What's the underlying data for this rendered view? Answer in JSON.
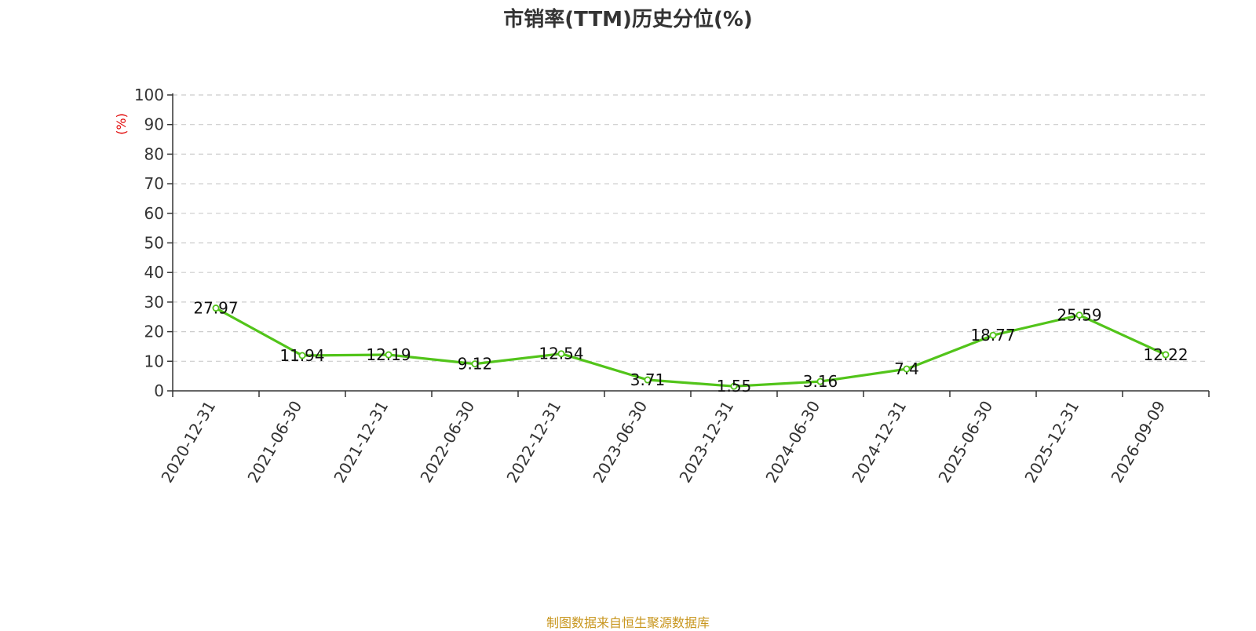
{
  "chart_data": {
    "type": "line",
    "title": "市销率(TTM)历史分位(%)",
    "ylabel": "(%)",
    "xlabel": "",
    "ylim": [
      0,
      100
    ],
    "yticks": [
      "0",
      "10",
      "20",
      "30",
      "40",
      "50",
      "60",
      "70",
      "80",
      "90",
      "100"
    ],
    "categories": [
      "2020-12-31",
      "2021-06-30",
      "2021-12-31",
      "2022-06-30",
      "2022-12-31",
      "2023-06-30",
      "2023-12-31",
      "2024-06-30",
      "2024-12-31",
      "2025-06-30",
      "2025-12-31",
      "2026-09-09"
    ],
    "values": [
      27.97,
      11.94,
      12.19,
      9.12,
      12.54,
      3.71,
      1.55,
      3.16,
      7.4,
      18.77,
      25.59,
      12.22
    ],
    "data_labels": [
      "27.97",
      "11.94",
      "12.19",
      "9.12",
      "12.54",
      "3.71",
      "1.55",
      "3.16",
      "7.4",
      "18.77",
      "25.59",
      "12.22"
    ],
    "grid": true,
    "legend": "none"
  },
  "colors": {
    "line": "#52c41a",
    "ylabel": "#e00000",
    "footer": "#c8961e",
    "grid": "#cccccc",
    "axis": "#333333"
  },
  "footer": {
    "source": "制图数据来自恒生聚源数据库"
  }
}
